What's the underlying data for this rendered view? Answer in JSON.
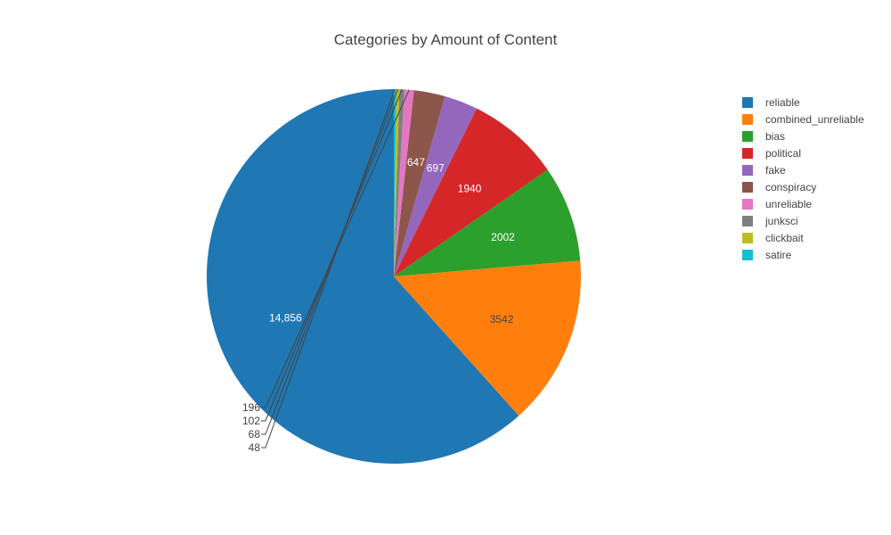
{
  "chart_data": {
    "type": "pie",
    "title": "Categories by Amount of Content",
    "slices": [
      {
        "label": "reliable",
        "value": 14856,
        "display": "14,856",
        "color": "#1f77b4"
      },
      {
        "label": "combined_unreliable",
        "value": 3542,
        "display": "3542",
        "color": "#ff7f0e"
      },
      {
        "label": "bias",
        "value": 2002,
        "display": "2002",
        "color": "#2ca02c"
      },
      {
        "label": "political",
        "value": 1940,
        "display": "1940",
        "color": "#d62728"
      },
      {
        "label": "fake",
        "value": 697,
        "display": "697",
        "color": "#9467bd"
      },
      {
        "label": "conspiracy",
        "value": 647,
        "display": "647",
        "color": "#8c564b"
      },
      {
        "label": "unreliable",
        "value": 196,
        "display": "196",
        "color": "#e377c2"
      },
      {
        "label": "junksci",
        "value": 102,
        "display": "102",
        "color": "#7f7f7f"
      },
      {
        "label": "clickbait",
        "value": 68,
        "display": "68",
        "color": "#bcbd22"
      },
      {
        "label": "satire",
        "value": 48,
        "display": "48",
        "color": "#17becf"
      }
    ],
    "legend_position": "top-right",
    "direction": "counterclockwise",
    "start_angle": "top"
  }
}
